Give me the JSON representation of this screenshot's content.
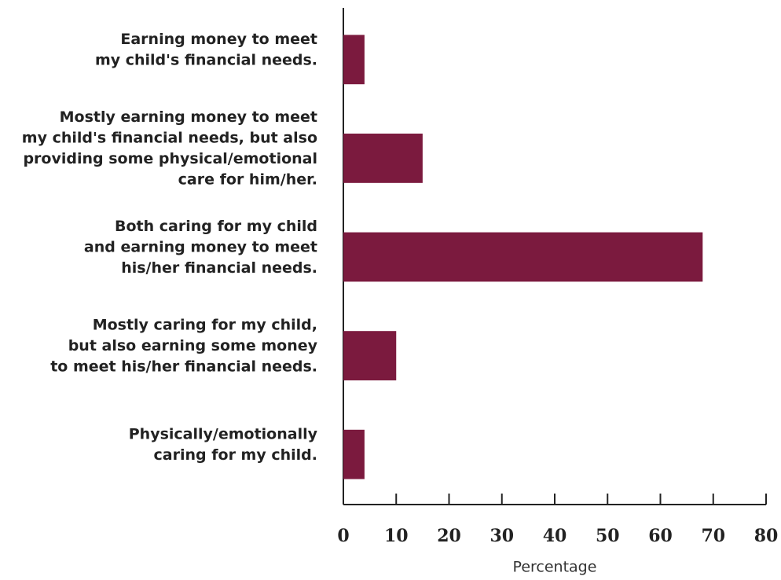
{
  "chart_data": {
    "type": "barh",
    "categories": [
      [
        "Earning money to meet",
        "my child's financial needs."
      ],
      [
        "Mostly earning money to meet",
        "my child's financial needs, but also",
        "providing some physical/emotional",
        "care for him/her."
      ],
      [
        "Both caring for my child",
        "and earning money to meet",
        "his/her financial needs."
      ],
      [
        "Mostly caring for my child,",
        "but also earning some money",
        "to meet his/her financial needs."
      ],
      [
        "Physically/emotionally",
        "caring for my child."
      ]
    ],
    "values": [
      4,
      15,
      68,
      10,
      4
    ],
    "color": "#7b1a3e",
    "xlabel": "Percentage",
    "xlim": [
      0,
      80
    ],
    "xticks": [
      0,
      10,
      20,
      30,
      40,
      50,
      60,
      70,
      80
    ],
    "grid": false
  }
}
